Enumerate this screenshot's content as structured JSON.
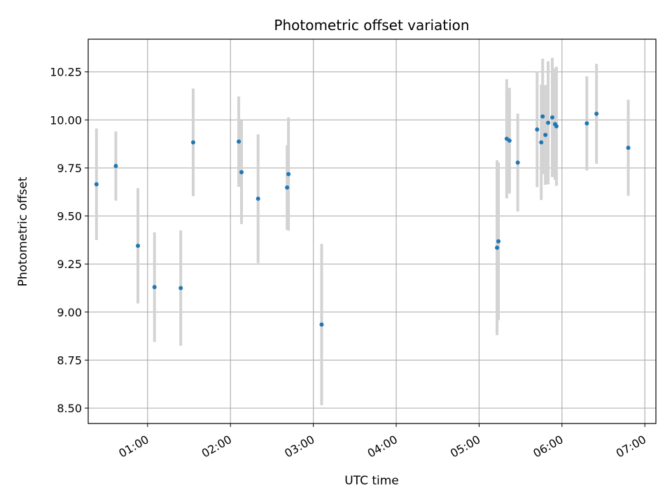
{
  "chart_data": {
    "type": "scatter",
    "title": "Photometric offset variation",
    "xlabel": "UTC time",
    "ylabel": "Photometric offset",
    "grid": true,
    "xlim": [
      "00:17",
      "07:08"
    ],
    "ylim": [
      8.42,
      10.42
    ],
    "x_ticks": [
      "01:00",
      "02:00",
      "03:00",
      "04:00",
      "05:00",
      "06:00",
      "07:00"
    ],
    "y_ticks": [
      "8.50",
      "8.75",
      "9.00",
      "9.25",
      "9.50",
      "9.75",
      "10.00",
      "10.25"
    ],
    "marker_color": "#1f77b4",
    "errorbar_color": "#d3d3d3",
    "series": [
      {
        "points": [
          {
            "x": "00:23",
            "y": 9.665,
            "yerr": 0.29
          },
          {
            "x": "00:37",
            "y": 9.76,
            "yerr": 0.18
          },
          {
            "x": "00:53",
            "y": 9.345,
            "yerr": 0.3
          },
          {
            "x": "01:05",
            "y": 9.13,
            "yerr": 0.285
          },
          {
            "x": "01:24",
            "y": 9.125,
            "yerr": 0.3
          },
          {
            "x": "01:33",
            "y": 9.883,
            "yerr": 0.28
          },
          {
            "x": "02:06",
            "y": 9.887,
            "yerr": 0.235
          },
          {
            "x": "02:08",
            "y": 9.728,
            "yerr": 0.27
          },
          {
            "x": "02:20",
            "y": 9.59,
            "yerr": 0.335
          },
          {
            "x": "02:41",
            "y": 9.648,
            "yerr": 0.22
          },
          {
            "x": "02:42",
            "y": 9.718,
            "yerr": 0.295
          },
          {
            "x": "03:06",
            "y": 8.935,
            "yerr": 0.42
          },
          {
            "x": "05:13",
            "y": 9.335,
            "yerr": 0.455
          },
          {
            "x": "05:14",
            "y": 9.368,
            "yerr": 0.41
          },
          {
            "x": "05:20",
            "y": 9.902,
            "yerr": 0.31
          },
          {
            "x": "05:22",
            "y": 9.892,
            "yerr": 0.275
          },
          {
            "x": "05:28",
            "y": 9.778,
            "yerr": 0.255
          },
          {
            "x": "05:42",
            "y": 9.95,
            "yerr": 0.3
          },
          {
            "x": "05:45",
            "y": 9.883,
            "yerr": 0.3
          },
          {
            "x": "05:46",
            "y": 10.018,
            "yerr": 0.3
          },
          {
            "x": "05:48",
            "y": 9.922,
            "yerr": 0.26
          },
          {
            "x": "05:50",
            "y": 9.985,
            "yerr": 0.32
          },
          {
            "x": "05:53",
            "y": 10.013,
            "yerr": 0.31
          },
          {
            "x": "05:55",
            "y": 9.978,
            "yerr": 0.29
          },
          {
            "x": "05:56",
            "y": 9.967,
            "yerr": 0.31
          },
          {
            "x": "06:18",
            "y": 9.982,
            "yerr": 0.245
          },
          {
            "x": "06:25",
            "y": 10.032,
            "yerr": 0.26
          },
          {
            "x": "06:48",
            "y": 9.855,
            "yerr": 0.25
          }
        ]
      }
    ]
  }
}
